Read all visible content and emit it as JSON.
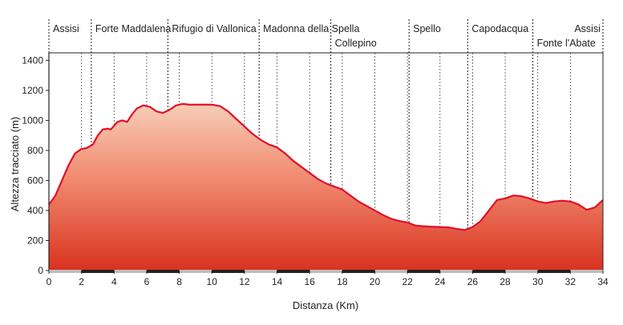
{
  "chart_data": {
    "type": "area",
    "xlabel": "Distanza (Km)",
    "ylabel": "Altezza tracciato (m)",
    "xlim": [
      0,
      34
    ],
    "ylim": [
      0,
      1450
    ],
    "x_ticks": [
      0,
      2,
      4,
      6,
      8,
      10,
      12,
      14,
      16,
      18,
      20,
      22,
      24,
      26,
      28,
      30,
      32,
      34
    ],
    "y_ticks": [
      0,
      200,
      400,
      600,
      800,
      1000,
      1200,
      1400
    ],
    "grid": "vertical dashed at every 2 km",
    "series": [
      {
        "x": [
          0,
          0.4,
          0.8,
          1.2,
          1.6,
          2.0,
          2.3,
          2.7,
          3.0,
          3.3,
          3.6,
          3.8,
          4.2,
          4.5,
          4.8,
          5.1,
          5.4,
          5.8,
          6.2,
          6.6,
          7.0,
          7.4,
          7.8,
          8.2,
          8.6,
          9.0,
          9.5,
          10.0,
          10.5,
          11.0,
          11.5,
          12.0,
          12.5,
          13.0,
          13.5,
          14.0,
          14.5,
          15.0,
          15.5,
          16.0,
          16.5,
          17.0,
          17.5,
          18.0,
          18.5,
          19.0,
          19.5,
          20.0,
          20.5,
          21.0,
          21.5,
          22.0,
          22.5,
          23.0,
          23.5,
          24.0,
          24.5,
          25.0,
          25.5,
          26.0,
          26.5,
          27.0,
          27.5,
          28.0,
          28.5,
          29.0,
          29.5,
          30.0,
          30.5,
          31.0,
          31.5,
          32.0,
          32.5,
          33.0,
          33.5,
          34.0
        ],
        "y": [
          440,
          500,
          600,
          700,
          780,
          810,
          815,
          840,
          900,
          940,
          945,
          940,
          990,
          1000,
          990,
          1040,
          1080,
          1100,
          1090,
          1060,
          1050,
          1070,
          1100,
          1110,
          1105,
          1105,
          1105,
          1105,
          1095,
          1060,
          1010,
          960,
          910,
          870,
          840,
          820,
          780,
          730,
          690,
          650,
          610,
          580,
          560,
          540,
          500,
          460,
          430,
          400,
          370,
          345,
          330,
          320,
          300,
          295,
          292,
          290,
          288,
          278,
          270,
          290,
          330,
          400,
          470,
          480,
          500,
          495,
          480,
          460,
          450,
          460,
          465,
          460,
          440,
          405,
          420,
          470
        ]
      }
    ],
    "places": [
      {
        "name": "Assisi",
        "km": 0,
        "row": 1
      },
      {
        "name": "Forte Maddalena",
        "km": 2.6,
        "row": 1
      },
      {
        "name": "Rifugio di Vallonica",
        "km": 7.3,
        "row": 1
      },
      {
        "name": "Madonna della Spella",
        "km": 12.9,
        "row": 1
      },
      {
        "name": "Collepino",
        "km": 17.3,
        "row": 2
      },
      {
        "name": "Spello",
        "km": 22.1,
        "row": 1
      },
      {
        "name": "Capodacqua",
        "km": 25.7,
        "row": 1
      },
      {
        "name": "Fonte l'Abate",
        "km": 29.7,
        "row": 2
      },
      {
        "name": "Assisi",
        "km": 34,
        "row": 1
      }
    ]
  }
}
